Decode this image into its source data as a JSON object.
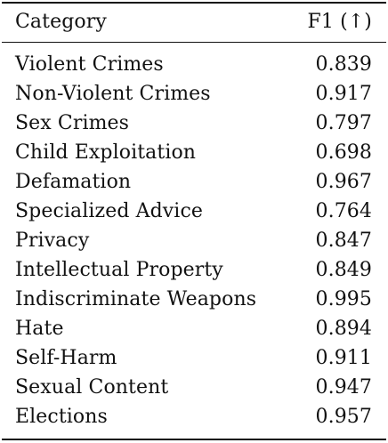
{
  "table": {
    "headers": {
      "category": "Category",
      "score": "F1 (↑)"
    },
    "rows": [
      {
        "category": "Violent Crimes",
        "score": "0.839"
      },
      {
        "category": "Non-Violent Crimes",
        "score": "0.917"
      },
      {
        "category": "Sex Crimes",
        "score": "0.797"
      },
      {
        "category": "Child Exploitation",
        "score": "0.698"
      },
      {
        "category": "Defamation",
        "score": "0.967"
      },
      {
        "category": "Specialized Advice",
        "score": "0.764"
      },
      {
        "category": "Privacy",
        "score": "0.847"
      },
      {
        "category": "Intellectual Property",
        "score": "0.849"
      },
      {
        "category": "Indiscriminate Weapons",
        "score": "0.995"
      },
      {
        "category": "Hate",
        "score": "0.894"
      },
      {
        "category": "Self-Harm",
        "score": "0.911"
      },
      {
        "category": "Sexual Content",
        "score": "0.947"
      },
      {
        "category": "Elections",
        "score": "0.957"
      }
    ]
  }
}
